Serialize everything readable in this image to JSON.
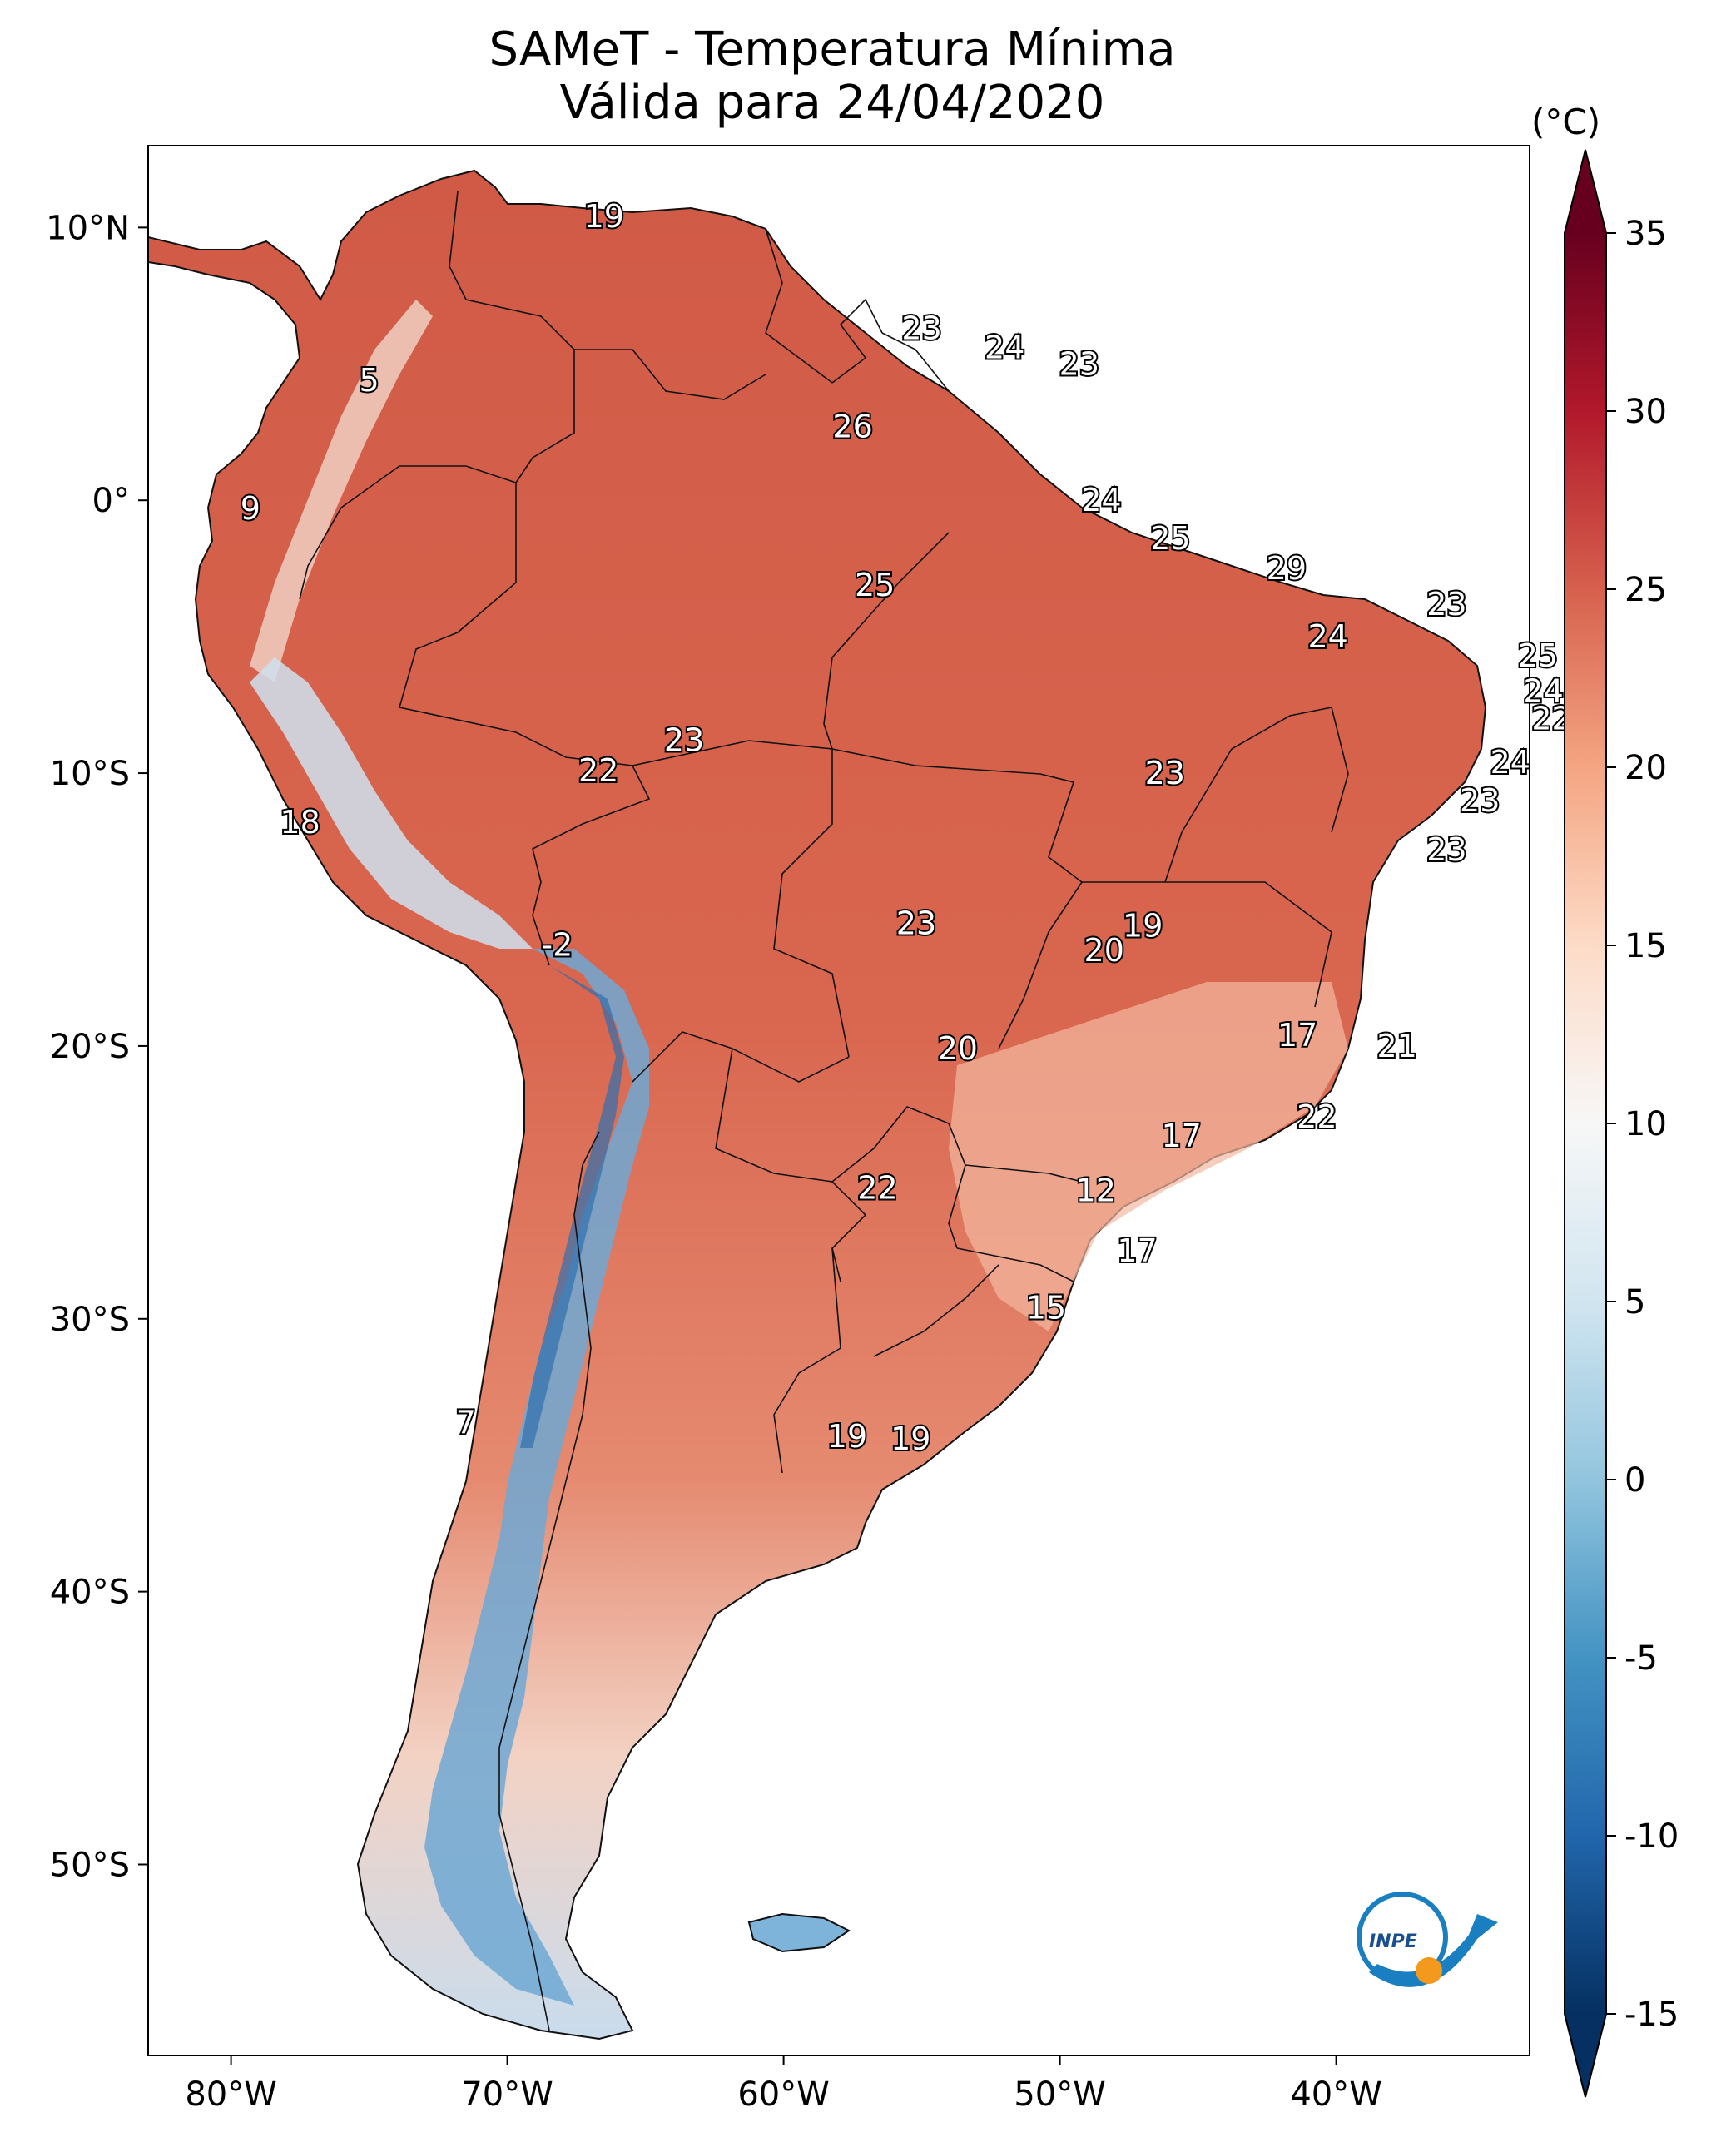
{
  "title": {
    "line1": "SAMeT - Temperatura Mínima",
    "line2": "Válida para 24/04/2020"
  },
  "map": {
    "lon_range": [
      -83,
      -33
    ],
    "lat_range": [
      -57,
      13
    ],
    "lon_ticks": [
      {
        "value": -80,
        "label": "80°W"
      },
      {
        "value": -70,
        "label": "70°W"
      },
      {
        "value": -60,
        "label": "60°W"
      },
      {
        "value": -50,
        "label": "50°W"
      },
      {
        "value": -40,
        "label": "40°W"
      }
    ],
    "lat_ticks": [
      {
        "value": 10,
        "label": "10°N"
      },
      {
        "value": 0,
        "label": "0°"
      },
      {
        "value": -10,
        "label": "10°S"
      },
      {
        "value": -20,
        "label": "20°S"
      },
      {
        "value": -30,
        "label": "30°S"
      },
      {
        "value": -40,
        "label": "40°S"
      },
      {
        "value": -50,
        "label": "50°S"
      }
    ],
    "labels": [
      {
        "text": "19",
        "lon": -66.5,
        "lat": 10.4
      },
      {
        "text": "23",
        "lon": -55.0,
        "lat": 6.3
      },
      {
        "text": "24",
        "lon": -52.0,
        "lat": 5.6
      },
      {
        "text": "23",
        "lon": -49.3,
        "lat": 5.0
      },
      {
        "text": "5",
        "lon": -75.0,
        "lat": 4.4
      },
      {
        "text": "26",
        "lon": -57.5,
        "lat": 2.7
      },
      {
        "text": "9",
        "lon": -79.3,
        "lat": -0.3
      },
      {
        "text": "24",
        "lon": -48.5,
        "lat": 0.0
      },
      {
        "text": "25",
        "lon": -46.0,
        "lat": -1.4
      },
      {
        "text": "25",
        "lon": -56.7,
        "lat": -3.1
      },
      {
        "text": "29",
        "lon": -41.8,
        "lat": -2.5
      },
      {
        "text": "23",
        "lon": -36.0,
        "lat": -3.8
      },
      {
        "text": "24",
        "lon": -40.3,
        "lat": -5.0
      },
      {
        "text": "25",
        "lon": -32.7,
        "lat": -5.7
      },
      {
        "text": "24",
        "lon": -32.5,
        "lat": -7.0
      },
      {
        "text": "22",
        "lon": -32.2,
        "lat": -8.0
      },
      {
        "text": "23",
        "lon": -63.6,
        "lat": -8.8
      },
      {
        "text": "22",
        "lon": -66.7,
        "lat": -9.9
      },
      {
        "text": "23",
        "lon": -46.2,
        "lat": -10.0
      },
      {
        "text": "24",
        "lon": -33.7,
        "lat": -9.6
      },
      {
        "text": "23",
        "lon": -34.8,
        "lat": -11.0
      },
      {
        "text": "18",
        "lon": -77.5,
        "lat": -11.8
      },
      {
        "text": "23",
        "lon": -36.0,
        "lat": -12.8
      },
      {
        "text": "23",
        "lon": -55.2,
        "lat": -15.5
      },
      {
        "text": "19",
        "lon": -47.0,
        "lat": -15.6
      },
      {
        "text": "20",
        "lon": -48.4,
        "lat": -16.5
      },
      {
        "text": "-2",
        "lon": -68.2,
        "lat": -16.3
      },
      {
        "text": "17",
        "lon": -41.4,
        "lat": -19.6
      },
      {
        "text": "20",
        "lon": -53.7,
        "lat": -20.1
      },
      {
        "text": "21",
        "lon": -37.8,
        "lat": -20.0
      },
      {
        "text": "22",
        "lon": -40.7,
        "lat": -22.6
      },
      {
        "text": "17",
        "lon": -45.6,
        "lat": -23.3
      },
      {
        "text": "22",
        "lon": -56.6,
        "lat": -25.2
      },
      {
        "text": "12",
        "lon": -48.7,
        "lat": -25.3
      },
      {
        "text": "17",
        "lon": -47.2,
        "lat": -27.5
      },
      {
        "text": "15",
        "lon": -50.5,
        "lat": -29.6
      },
      {
        "text": "7",
        "lon": -71.5,
        "lat": -33.8
      },
      {
        "text": "19",
        "lon": -57.7,
        "lat": -34.3
      },
      {
        "text": "19",
        "lon": -55.4,
        "lat": -34.4
      }
    ]
  },
  "colorbar": {
    "unit": "(°C)",
    "range": [
      -15,
      35
    ],
    "ticks": [
      "35",
      "30",
      "25",
      "20",
      "15",
      "10",
      "5",
      "0",
      "-5",
      "-10",
      "-15"
    ],
    "colors": [
      "#053061",
      "#2166ac",
      "#4393c3",
      "#92c5de",
      "#d1e5f0",
      "#f7f7f7",
      "#fddbc7",
      "#f4a582",
      "#d6604d",
      "#b2182b",
      "#67001f"
    ]
  },
  "logo": {
    "text": "INPE",
    "colors": [
      "#1a7fc1",
      "#f39a1e"
    ]
  }
}
